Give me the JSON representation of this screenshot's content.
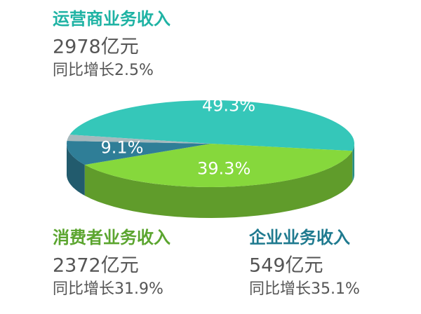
{
  "chart_data": {
    "type": "pie",
    "categories": [
      "运营商业务收入",
      "消费者业务收入",
      "企业业务收入",
      null
    ],
    "values": [
      49.3,
      39.3,
      9.1,
      2.3
    ],
    "value_labels": [
      "49.3%",
      "39.3%",
      "9.1%",
      null
    ],
    "colors": [
      "#35c7b9",
      "#86d83c",
      "#2f7e97",
      "#a6b9bd"
    ],
    "label_colors": [
      "#1fb3a4",
      "#5ba52f",
      "#1f7a8f",
      null
    ],
    "revenue_labels": [
      "2978亿元",
      "2372亿元",
      "549亿元",
      null
    ],
    "growth_labels": [
      "同比增长2.5%",
      "同比增长31.9%",
      "同比增长35.1%",
      null
    ]
  }
}
